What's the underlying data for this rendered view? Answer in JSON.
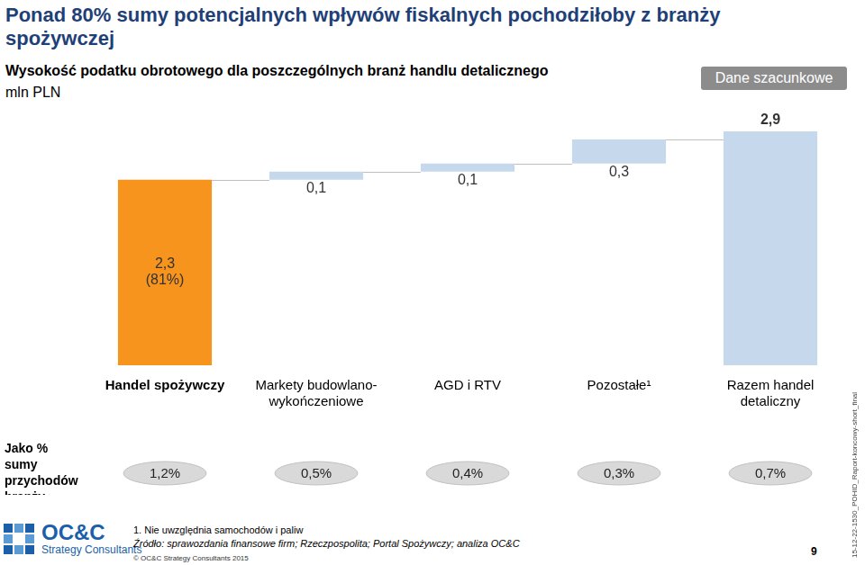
{
  "chart_data": {
    "type": "waterfall",
    "title": "Ponad 80% sumy potencjalnych wpływów fiskalnych pochodziłoby z branży spożywczej",
    "subtitle": "Wysokość podatku obrotowego dla poszczególnych branż handlu detalicznego",
    "y_label": "mln PLN",
    "categories": [
      "Handel spożywczy",
      "Markety budowlano-wykończeniowe",
      "AGD i RTV",
      "Pozostałe¹",
      "Razem handel detaliczny"
    ],
    "values": [
      2.3,
      0.1,
      0.1,
      0.3,
      2.9
    ],
    "value_labels": [
      "2,3\n(81%)",
      "0,1",
      "0,1",
      "0,3",
      "2,9"
    ],
    "colors": [
      "#f7941d",
      "#c6d9ec",
      "#c6d9ec",
      "#c6d9ec",
      "#c6d9ec"
    ],
    "ylim": [
      0,
      3
    ],
    "tick_labels": "x",
    "grid": false,
    "data_labels": true,
    "revenue_share": {
      "label": "Jako % sumy przychodów branży",
      "values": [
        1.2,
        0.5,
        0.4,
        0.3,
        0.7
      ],
      "value_labels": [
        "1,2%",
        "0,5%",
        "0,4%",
        "0,3%",
        "0,7%"
      ]
    }
  },
  "page": {
    "badge": "Dane szacunkowe",
    "footnote": "1. Nie uwzględnia samochodów i paliw",
    "source": "Źródło: sprawozdania finansowe firm; Rzeczpospolita; Portal Spożywczy; analiza OC&C",
    "copyright": "© OC&C Strategy Consultants 2015",
    "logo": {
      "name": "OC&C",
      "tagline": "Strategy Consultants"
    },
    "page_number": 9,
    "document_id": "15-12-22-1530_POHID_Raport-koncowy-short_final"
  }
}
